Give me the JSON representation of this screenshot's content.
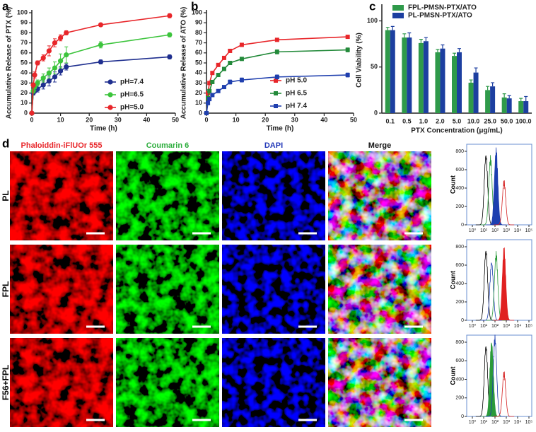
{
  "panel_letters": [
    "a",
    "b",
    "c",
    "d"
  ],
  "chart_data": [
    {
      "type": "line",
      "x_label": "Time (h)",
      "y_label": "Accumulative Release of PTX (%)",
      "x": [
        0,
        0.5,
        1,
        2,
        4,
        6,
        8,
        10,
        12,
        24,
        48
      ],
      "xlim": [
        0,
        50
      ],
      "xticks": [
        0,
        10,
        20,
        30,
        40,
        50
      ],
      "ylim": [
        0,
        100
      ],
      "yticks": [
        0,
        10,
        20,
        30,
        40,
        50,
        60,
        70,
        80,
        90,
        100
      ],
      "legend": "lower right",
      "marker": "circle",
      "series": [
        {
          "name": "pH=7.4",
          "color": "#1f2f8f",
          "values": [
            0,
            20,
            22,
            24,
            28,
            32,
            36,
            42,
            46,
            51,
            56
          ],
          "errors": [
            0,
            2,
            2,
            3,
            4,
            5,
            5,
            4,
            3,
            2,
            2
          ]
        },
        {
          "name": "pH=6.5",
          "color": "#3cc43c",
          "values": [
            0,
            22,
            26,
            30,
            35,
            40,
            45,
            52,
            58,
            68,
            78
          ],
          "errors": [
            0,
            2,
            3,
            3,
            4,
            5,
            6,
            7,
            8,
            3,
            2
          ]
        },
        {
          "name": "pH=5.0",
          "color": "#e8262a",
          "values": [
            0,
            28,
            38,
            50,
            55,
            62,
            70,
            75,
            80,
            88,
            97
          ],
          "errors": [
            0,
            2,
            3,
            2,
            3,
            5,
            4,
            3,
            2,
            1,
            2
          ]
        }
      ]
    },
    {
      "type": "line",
      "x_label": "Time (h)",
      "y_label": "Accumulative Release of ATO (%)",
      "x": [
        0,
        0.5,
        1,
        2,
        4,
        6,
        8,
        12,
        24,
        48
      ],
      "xlim": [
        0,
        50
      ],
      "xticks": [
        0,
        10,
        20,
        30,
        40,
        50
      ],
      "ylim": [
        0,
        100
      ],
      "yticks": [
        0,
        10,
        20,
        30,
        40,
        50,
        60,
        70,
        80,
        90,
        100
      ],
      "legend": "lower right",
      "marker": "square",
      "series": [
        {
          "name": "pH 5.0",
          "color": "#e8262a",
          "values": [
            0,
            20,
            30,
            40,
            48,
            55,
            62,
            68,
            73,
            76
          ],
          "errors": [
            0,
            1,
            1,
            1,
            1,
            1,
            1,
            1,
            1,
            1
          ]
        },
        {
          "name": "pH 6.5",
          "color": "#238a3a",
          "values": [
            0,
            15,
            22,
            31,
            38,
            44,
            50,
            54,
            61,
            63
          ],
          "errors": [
            0,
            1,
            1,
            1,
            1,
            1,
            1,
            1,
            2,
            2
          ]
        },
        {
          "name": "pH 7.4",
          "color": "#1f3fae",
          "values": [
            0,
            10,
            14,
            18,
            22,
            26,
            31,
            33,
            36,
            38
          ],
          "errors": [
            0,
            1,
            1,
            1,
            1,
            1,
            2,
            2,
            2,
            2
          ]
        }
      ]
    },
    {
      "type": "bar",
      "x_label": "PTX Concentration (μg/mL)",
      "y_label": "Cell Viability (%)",
      "categories": [
        "0.1",
        "0.5",
        "1.0",
        "2.0",
        "5.0",
        "10.0",
        "25.0",
        "50.0",
        "100.0"
      ],
      "ylim": [
        0,
        115
      ],
      "yticks": [
        0,
        50,
        100
      ],
      "legend": "upper left",
      "series": [
        {
          "name": "FPL-PMSN-PTX/ATO",
          "color": "#2f9a4a",
          "values": [
            90,
            82,
            76,
            66,
            62,
            33,
            25,
            17,
            13
          ],
          "errors": [
            3,
            4,
            4,
            3,
            3,
            3,
            4,
            4,
            3
          ]
        },
        {
          "name": "PL-PMSN-PTX/ATO",
          "color": "#1d3fa0",
          "values": [
            90,
            82,
            78,
            70,
            66,
            44,
            29,
            16,
            13
          ],
          "errors": [
            4,
            5,
            4,
            4,
            4,
            5,
            4,
            3,
            5
          ]
        }
      ]
    }
  ],
  "microscopy": {
    "column_titles": [
      {
        "text": "Phaloiddin-iFlUOr 555",
        "color": "#e8262a"
      },
      {
        "text": "Coumarin 6",
        "color": "#2eae3e"
      },
      {
        "text": "DAPI",
        "color": "#2238b8"
      },
      {
        "text": "Merge",
        "color": "#111111"
      }
    ],
    "row_labels": [
      "PL",
      "FPL",
      "F56+FPL"
    ]
  },
  "flow_cytometry": {
    "y_label": "Count",
    "yticks": [
      0,
      200,
      400,
      600,
      800
    ],
    "xticks": [
      {
        "value": 0,
        "label": "10⁰"
      },
      {
        "value": 1,
        "label": "10¹"
      },
      {
        "value": 2,
        "label": "10²"
      },
      {
        "value": 3,
        "label": "10³"
      },
      {
        "value": 4,
        "label": "10⁴"
      },
      {
        "value": 5,
        "label": "10⁵"
      }
    ]
  }
}
